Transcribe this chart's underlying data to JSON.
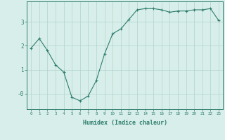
{
  "xlabel": "Humidex (Indice chaleur)",
  "x_values": [
    0,
    1,
    2,
    3,
    4,
    5,
    6,
    7,
    8,
    9,
    10,
    11,
    12,
    13,
    14,
    15,
    16,
    17,
    18,
    19,
    20,
    21,
    22,
    23
  ],
  "y_values": [
    1.9,
    2.3,
    1.8,
    1.2,
    0.9,
    -0.15,
    -0.3,
    -0.1,
    0.55,
    1.65,
    2.5,
    2.7,
    3.1,
    3.5,
    3.55,
    3.55,
    3.5,
    3.4,
    3.45,
    3.45,
    3.5,
    3.5,
    3.55,
    3.05
  ],
  "line_color": "#2e7d6e",
  "marker": "+",
  "bg_color": "#d8eeea",
  "grid_color": "#b0d4cc",
  "tick_color": "#2e7d6e",
  "label_color": "#2e7d6e",
  "ytick_labels": [
    "-0",
    "1",
    "2",
    "3"
  ],
  "ytick_values": [
    0,
    1,
    2,
    3
  ],
  "ylim": [
    -0.65,
    3.85
  ],
  "xlim": [
    -0.5,
    23.5
  ]
}
